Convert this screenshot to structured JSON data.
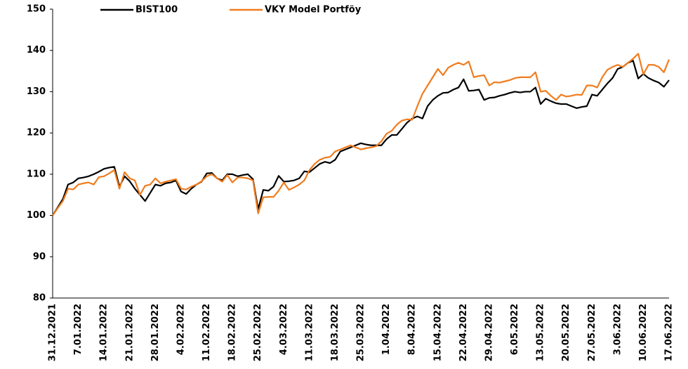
{
  "chart_data": {
    "type": "line",
    "categories": [
      "31.12.2021",
      null,
      null,
      null,
      null,
      "7.01.2022",
      null,
      null,
      null,
      null,
      "14.01.2022",
      null,
      null,
      null,
      null,
      "21.01.2022",
      null,
      null,
      null,
      null,
      "28.01.2022",
      null,
      null,
      null,
      null,
      "4.02.2022",
      null,
      null,
      null,
      null,
      "11.02.2022",
      null,
      null,
      null,
      null,
      "18.02.2022",
      null,
      null,
      null,
      null,
      "25.02.2022",
      null,
      null,
      null,
      null,
      "4.03.2022",
      null,
      null,
      null,
      null,
      "11.03.2022",
      null,
      null,
      null,
      null,
      "18.03.2022",
      null,
      null,
      null,
      null,
      "25.03.2022",
      null,
      null,
      null,
      null,
      "1.04.2022",
      null,
      null,
      null,
      null,
      "8.04.2022",
      null,
      null,
      null,
      null,
      "15.04.2022",
      null,
      null,
      null,
      null,
      "22.04.2022",
      null,
      null,
      null,
      null,
      "29.04.2022",
      null,
      null,
      null,
      null,
      "6.05.2022",
      null,
      null,
      null,
      null,
      "13.05.2022",
      null,
      null,
      null,
      null,
      "20.05.2022",
      null,
      null,
      null,
      null,
      "27.05.2022",
      null,
      null,
      null,
      null,
      "3.06.2022",
      null,
      null,
      null,
      null,
      "10.06.2022",
      null,
      null,
      null,
      null,
      "17.06.2022"
    ],
    "series": [
      {
        "name": "BIST100",
        "color": "#000000",
        "values": [
          100,
          102,
          104,
          107.5,
          108,
          109,
          109.2,
          109.5,
          110,
          110.6,
          111.3,
          111.6,
          111.8,
          107,
          109.5,
          108.3,
          106.5,
          105,
          103.5,
          105.5,
          107.5,
          107.2,
          107.8,
          108,
          108.5,
          105.8,
          105.2,
          106.5,
          107.5,
          108.2,
          110.2,
          110.3,
          109,
          108.5,
          110,
          110,
          109.5,
          109.8,
          110,
          108.8,
          101.5,
          106.2,
          106,
          107,
          109.6,
          108.2,
          108.3,
          108.5,
          109,
          110.7,
          110.5,
          111.5,
          112.5,
          113,
          112.7,
          113.5,
          115.5,
          116,
          116.5,
          117,
          117.5,
          117.2,
          117,
          117,
          117,
          118.5,
          119.5,
          119.5,
          121,
          122.5,
          123.5,
          124,
          123.5,
          126.5,
          128,
          129,
          129.7,
          129.8,
          130.5,
          131,
          133,
          130.2,
          130.3,
          130.5,
          128,
          128.5,
          128.6,
          129,
          129.3,
          129.7,
          130,
          129.8,
          130,
          130,
          131,
          127,
          128.3,
          127.7,
          127.2,
          127,
          127,
          126.5,
          126,
          126.3,
          126.5,
          129.3,
          129,
          130.5,
          132,
          133.3,
          135.5,
          136,
          137,
          137.5,
          133.2,
          134.3,
          133.3,
          132.7,
          132.2,
          131.2,
          132.8
        ]
      },
      {
        "name": "VKY Model Portföy",
        "color": "#f07c1e",
        "values": [
          100,
          101.8,
          103.5,
          106.5,
          106.3,
          107.5,
          107.8,
          108,
          107.5,
          109.3,
          109.5,
          110.2,
          111,
          106.5,
          110.5,
          109,
          108.5,
          105,
          107.2,
          107.5,
          109,
          107.8,
          108.2,
          108.5,
          108.8,
          106.5,
          106.3,
          107,
          107.5,
          108.3,
          109.5,
          110,
          109,
          108.2,
          109.8,
          108,
          109.2,
          109.2,
          109,
          108.5,
          100.5,
          104.4,
          104.5,
          104.5,
          106,
          108,
          106.2,
          106.8,
          107.5,
          108.5,
          111,
          112.5,
          113.5,
          114,
          114.2,
          115.5,
          116,
          116.5,
          117,
          116.5,
          116,
          116.3,
          116.5,
          116.8,
          118,
          119.8,
          120.5,
          122,
          123,
          123.3,
          123.2,
          126.5,
          129.5,
          131.5,
          133.5,
          135.5,
          134,
          135.8,
          136.5,
          137,
          136.5,
          137.3,
          133.5,
          133.8,
          134,
          131.5,
          132.3,
          132.2,
          132.5,
          132.8,
          133.3,
          133.5,
          133.5,
          133.5,
          134.7,
          130,
          130.2,
          129,
          128,
          129.3,
          128.8,
          129,
          129.3,
          129.2,
          131.5,
          131.5,
          131,
          133.5,
          135.3,
          136,
          136.5,
          136,
          137,
          138,
          139.2,
          134.2,
          136.5,
          136.5,
          136,
          134.7,
          137.8
        ]
      }
    ],
    "ylim": [
      80,
      150
    ],
    "yticks": [
      80,
      90,
      100,
      110,
      120,
      130,
      140,
      150
    ],
    "grid": false,
    "legend": "top"
  }
}
